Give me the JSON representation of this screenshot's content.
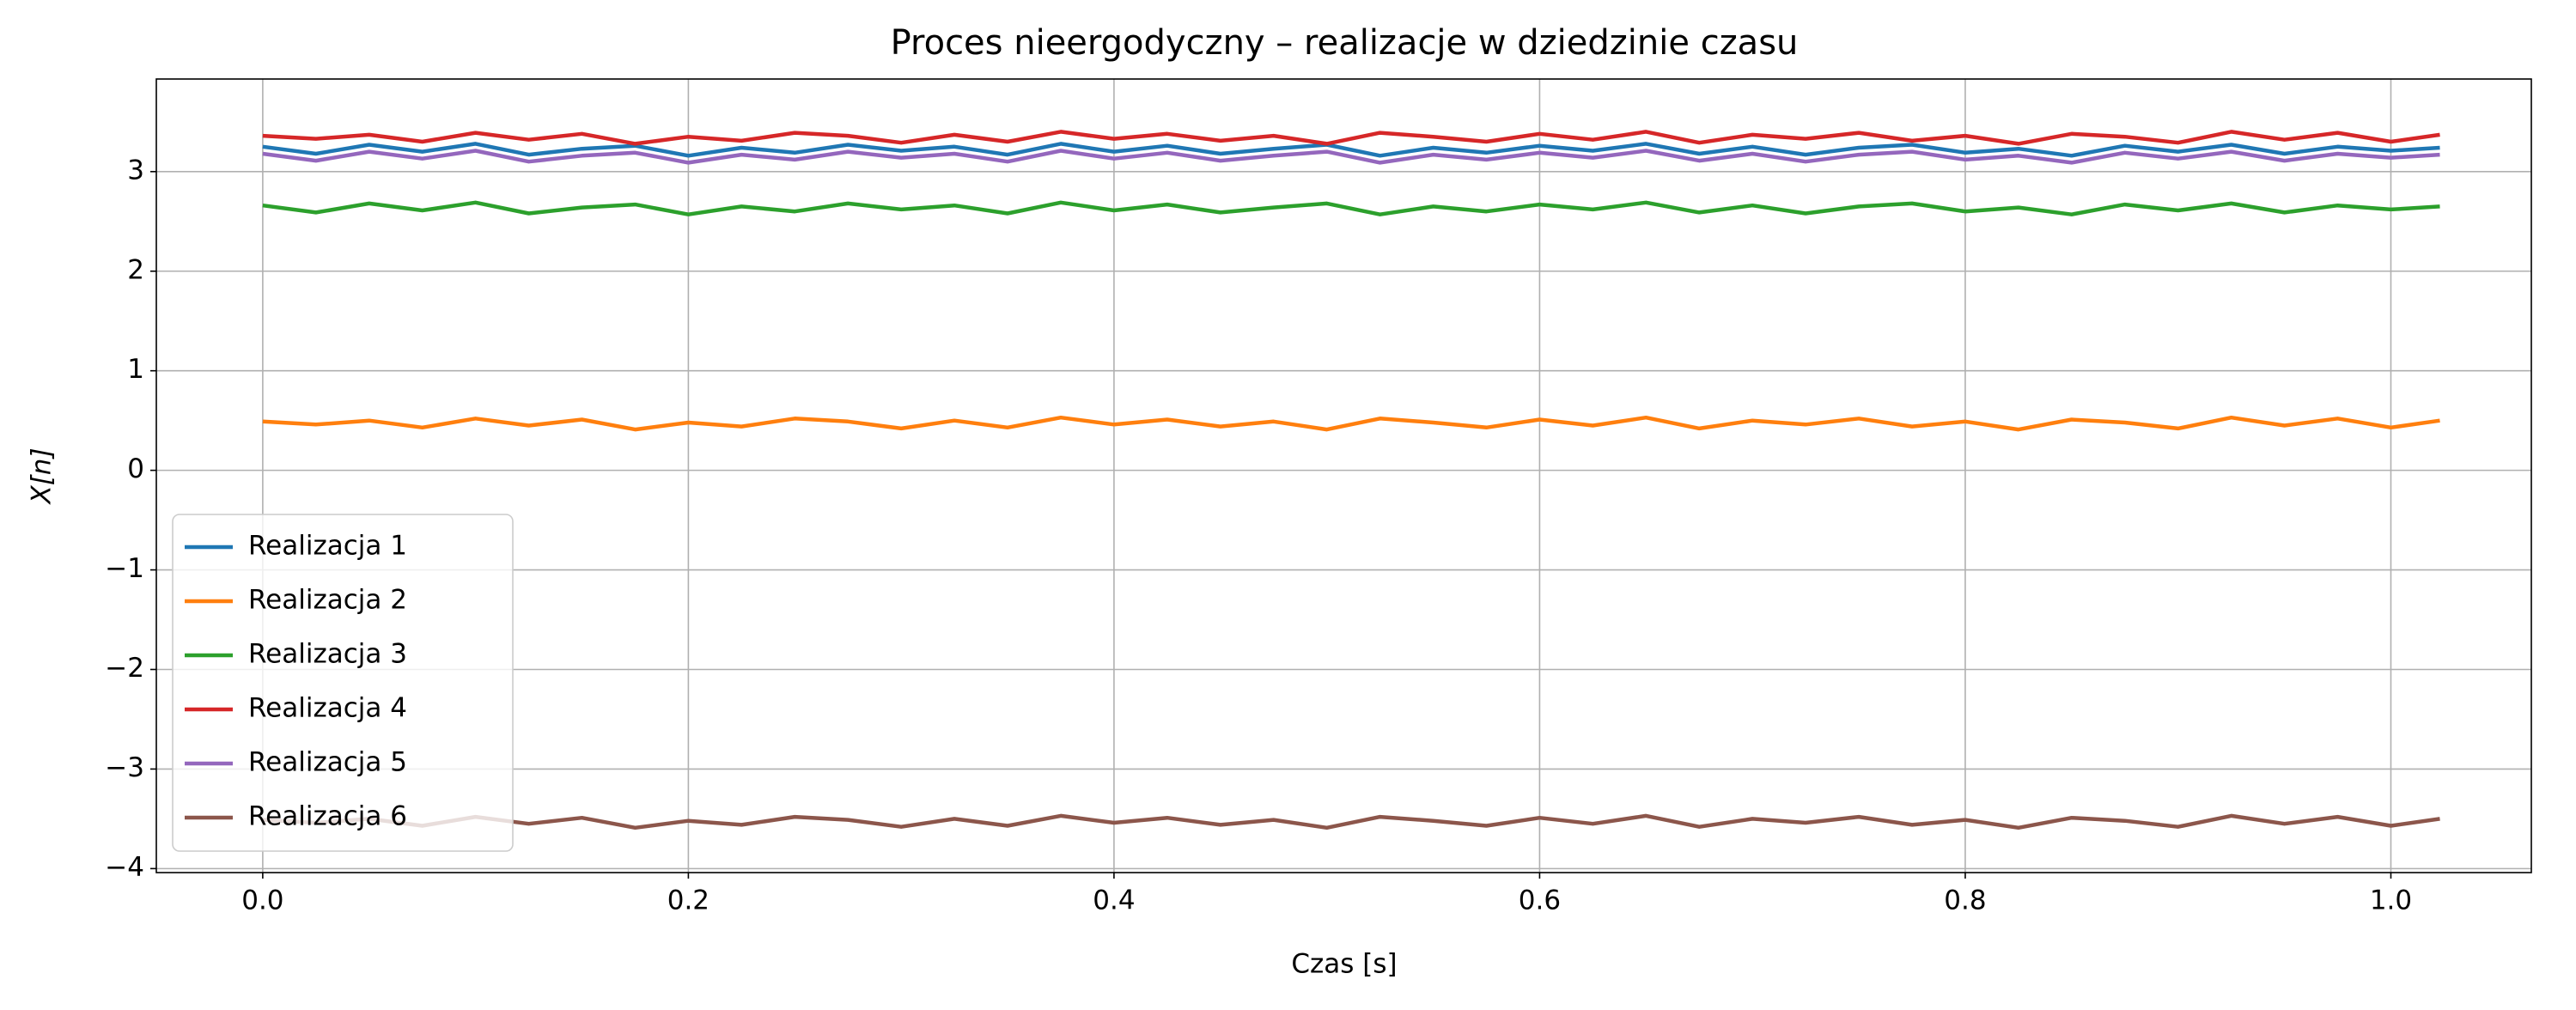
{
  "chart_data": {
    "type": "line",
    "title": "Proces nieergodyczny – realizacje w dziedzinie czasu",
    "xlabel": "Czas [s]",
    "ylabel": "X[n]",
    "x": [
      0,
      0.025,
      0.05,
      0.075,
      0.1,
      0.125,
      0.15,
      0.175,
      0.2,
      0.225,
      0.25,
      0.275,
      0.3,
      0.325,
      0.35,
      0.375,
      0.4,
      0.425,
      0.45,
      0.475,
      0.5,
      0.525,
      0.55,
      0.575,
      0.6,
      0.625,
      0.65,
      0.675,
      0.7,
      0.725,
      0.75,
      0.775,
      0.8,
      0.825,
      0.85,
      0.875,
      0.9,
      0.925,
      0.95,
      0.975,
      1.0,
      1.023
    ],
    "series": [
      {
        "name": "Realizacja 1",
        "color": "#1f77b4",
        "values": [
          3.25,
          3.18,
          3.27,
          3.2,
          3.28,
          3.17,
          3.23,
          3.26,
          3.16,
          3.24,
          3.19,
          3.27,
          3.21,
          3.25,
          3.17,
          3.28,
          3.2,
          3.26,
          3.18,
          3.23,
          3.27,
          3.16,
          3.24,
          3.19,
          3.26,
          3.21,
          3.28,
          3.18,
          3.25,
          3.17,
          3.24,
          3.27,
          3.19,
          3.23,
          3.16,
          3.26,
          3.2,
          3.27,
          3.18,
          3.25,
          3.21,
          3.24
        ]
      },
      {
        "name": "Realizacja 2",
        "color": "#ff7f0e",
        "values": [
          0.49,
          0.46,
          0.5,
          0.43,
          0.52,
          0.45,
          0.51,
          0.41,
          0.48,
          0.44,
          0.52,
          0.49,
          0.42,
          0.5,
          0.43,
          0.53,
          0.46,
          0.51,
          0.44,
          0.49,
          0.41,
          0.52,
          0.48,
          0.43,
          0.51,
          0.45,
          0.53,
          0.42,
          0.5,
          0.46,
          0.52,
          0.44,
          0.49,
          0.41,
          0.51,
          0.48,
          0.42,
          0.53,
          0.45,
          0.52,
          0.43,
          0.5
        ]
      },
      {
        "name": "Realizacja 3",
        "color": "#2ca02c",
        "values": [
          2.66,
          2.59,
          2.68,
          2.61,
          2.69,
          2.58,
          2.64,
          2.67,
          2.57,
          2.65,
          2.6,
          2.68,
          2.62,
          2.66,
          2.58,
          2.69,
          2.61,
          2.67,
          2.59,
          2.64,
          2.68,
          2.57,
          2.65,
          2.6,
          2.67,
          2.62,
          2.69,
          2.59,
          2.66,
          2.58,
          2.65,
          2.68,
          2.6,
          2.64,
          2.57,
          2.67,
          2.61,
          2.68,
          2.59,
          2.66,
          2.62,
          2.65
        ]
      },
      {
        "name": "Realizacja 4",
        "color": "#d62728",
        "values": [
          3.36,
          3.33,
          3.37,
          3.3,
          3.39,
          3.32,
          3.38,
          3.28,
          3.35,
          3.31,
          3.39,
          3.36,
          3.29,
          3.37,
          3.3,
          3.4,
          3.33,
          3.38,
          3.31,
          3.36,
          3.28,
          3.39,
          3.35,
          3.3,
          3.38,
          3.32,
          3.4,
          3.29,
          3.37,
          3.33,
          3.39,
          3.31,
          3.36,
          3.28,
          3.38,
          3.35,
          3.29,
          3.4,
          3.32,
          3.39,
          3.3,
          3.37
        ]
      },
      {
        "name": "Realizacja 5",
        "color": "#9467bd",
        "values": [
          3.18,
          3.11,
          3.2,
          3.13,
          3.21,
          3.1,
          3.16,
          3.19,
          3.09,
          3.17,
          3.12,
          3.2,
          3.14,
          3.18,
          3.1,
          3.21,
          3.13,
          3.19,
          3.11,
          3.16,
          3.2,
          3.09,
          3.17,
          3.12,
          3.19,
          3.14,
          3.21,
          3.11,
          3.18,
          3.1,
          3.17,
          3.2,
          3.12,
          3.16,
          3.09,
          3.19,
          3.13,
          3.2,
          3.11,
          3.18,
          3.14,
          3.17
        ]
      },
      {
        "name": "Realizacja 6",
        "color": "#8c564b",
        "values": [
          -3.51,
          -3.54,
          -3.5,
          -3.57,
          -3.48,
          -3.55,
          -3.49,
          -3.59,
          -3.52,
          -3.56,
          -3.48,
          -3.51,
          -3.58,
          -3.5,
          -3.57,
          -3.47,
          -3.54,
          -3.49,
          -3.56,
          -3.51,
          -3.59,
          -3.48,
          -3.52,
          -3.57,
          -3.49,
          -3.55,
          -3.47,
          -3.58,
          -3.5,
          -3.54,
          -3.48,
          -3.56,
          -3.51,
          -3.59,
          -3.49,
          -3.52,
          -3.58,
          -3.47,
          -3.55,
          -3.48,
          -3.57,
          -3.5
        ]
      }
    ],
    "xlim": [
      -0.05,
      1.066
    ],
    "ylim": [
      -4.04,
      3.93
    ],
    "xticks": [
      {
        "value": 0,
        "label": "0.0"
      },
      0.2,
      0.4,
      0.6,
      0.8,
      {
        "value": 1,
        "label": "1.0"
      }
    ],
    "yticks": [
      {
        "value": -4,
        "label": "−4"
      },
      {
        "value": -3,
        "label": "−3"
      },
      {
        "value": -2,
        "label": "−2"
      },
      {
        "value": -1,
        "label": "−1"
      },
      0,
      1,
      2,
      3
    ],
    "grid": true,
    "legend": "lower left"
  }
}
